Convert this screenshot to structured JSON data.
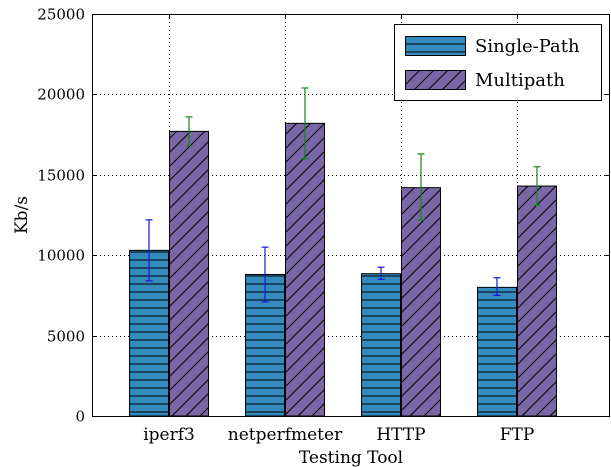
{
  "chart_data": {
    "type": "bar",
    "xlabel": "Testing Tool",
    "ylabel": "Kb/s",
    "ylim": [
      0,
      25000
    ],
    "yticks": [
      0,
      5000,
      10000,
      15000,
      20000,
      25000
    ],
    "grid": true,
    "legend_position": "top-right",
    "categories": [
      "iperf3",
      "netperfmeter",
      "HTTP",
      "FTP"
    ],
    "series": [
      {
        "name": "Single-Path",
        "values": [
          10300,
          8800,
          8850,
          8000
        ],
        "error_low": [
          8400,
          7100,
          8500,
          7500
        ],
        "error_high": [
          12200,
          10500,
          9250,
          8600
        ],
        "color": "#348abd",
        "hatch": "horizontal",
        "error_color": "#1515e0"
      },
      {
        "name": "Multipath",
        "values": [
          17700,
          18200,
          14200,
          14300
        ],
        "error_low": [
          16800,
          16000,
          12200,
          13100
        ],
        "error_high": [
          18600,
          20400,
          16300,
          15500
        ],
        "color": "#7a68a6",
        "hatch": "diagonal",
        "error_color": "#118811"
      }
    ]
  }
}
